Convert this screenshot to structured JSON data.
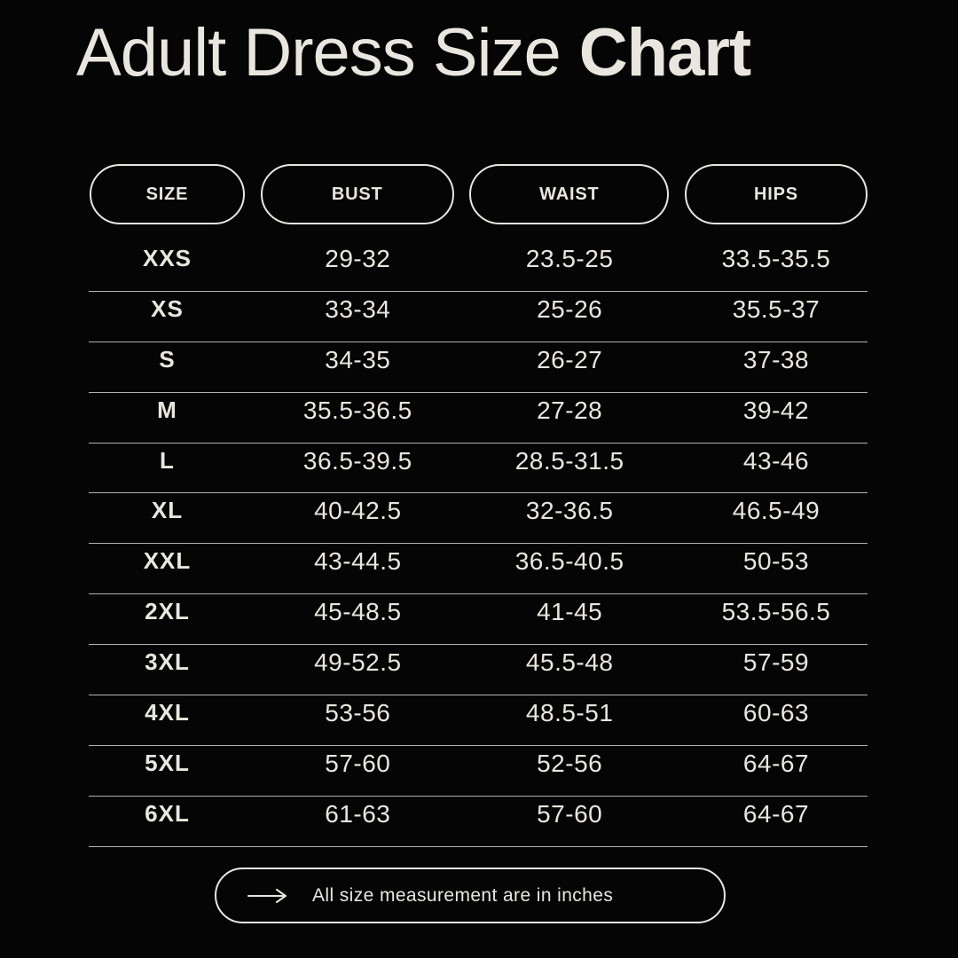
{
  "theme": {
    "background": "#050505",
    "text": "#e9e6df",
    "divider": "#b4b2ae",
    "pill_border": "#e9e6df"
  },
  "title": {
    "text_regular": "Adult Dress Size",
    "text_bold": "Chart"
  },
  "table": {
    "headers": [
      "SIZE",
      "BUST",
      "WAIST",
      "HIPS"
    ],
    "rows": [
      [
        "XXS",
        "29-32",
        "23.5-25",
        "33.5-35.5"
      ],
      [
        "XS",
        "33-34",
        "25-26",
        "35.5-37"
      ],
      [
        "S",
        "34-35",
        "26-27",
        "37-38"
      ],
      [
        "M",
        "35.5-36.5",
        "27-28",
        "39-42"
      ],
      [
        "L",
        "36.5-39.5",
        "28.5-31.5",
        "43-46"
      ],
      [
        "XL",
        "40-42.5",
        "32-36.5",
        "46.5-49"
      ],
      [
        "XXL",
        "43-44.5",
        "36.5-40.5",
        "50-53"
      ],
      [
        "2XL",
        "45-48.5",
        "41-45",
        "53.5-56.5"
      ],
      [
        "3XL",
        "49-52.5",
        "45.5-48",
        "57-59"
      ],
      [
        "4XL",
        "53-56",
        "48.5-51",
        "60-63"
      ],
      [
        "5XL",
        "57-60",
        "52-56",
        "64-67"
      ],
      [
        "6XL",
        "61-63",
        "57-60",
        "64-67"
      ]
    ]
  },
  "footer": {
    "icon": "arrow-right-icon",
    "note": "All size measurement are in inches"
  },
  "chart_data": {
    "type": "table",
    "title": "Adult Dress Size Chart",
    "columns": [
      "SIZE",
      "BUST",
      "WAIST",
      "HIPS"
    ],
    "units": "inches",
    "rows": [
      {
        "size": "XXS",
        "bust": "29-32",
        "waist": "23.5-25",
        "hips": "33.5-35.5"
      },
      {
        "size": "XS",
        "bust": "33-34",
        "waist": "25-26",
        "hips": "35.5-37"
      },
      {
        "size": "S",
        "bust": "34-35",
        "waist": "26-27",
        "hips": "37-38"
      },
      {
        "size": "M",
        "bust": "35.5-36.5",
        "waist": "27-28",
        "hips": "39-42"
      },
      {
        "size": "L",
        "bust": "36.5-39.5",
        "waist": "28.5-31.5",
        "hips": "43-46"
      },
      {
        "size": "XL",
        "bust": "40-42.5",
        "waist": "32-36.5",
        "hips": "46.5-49"
      },
      {
        "size": "XXL",
        "bust": "43-44.5",
        "waist": "36.5-40.5",
        "hips": "50-53"
      },
      {
        "size": "2XL",
        "bust": "45-48.5",
        "waist": "41-45",
        "hips": "53.5-56.5"
      },
      {
        "size": "3XL",
        "bust": "49-52.5",
        "waist": "45.5-48",
        "hips": "57-59"
      },
      {
        "size": "4XL",
        "bust": "53-56",
        "waist": "48.5-51",
        "hips": "60-63"
      },
      {
        "size": "5XL",
        "bust": "57-60",
        "waist": "52-56",
        "hips": "64-67"
      },
      {
        "size": "6XL",
        "bust": "61-63",
        "waist": "57-60",
        "hips": "64-67"
      }
    ],
    "note": "All size measurement are in inches"
  }
}
